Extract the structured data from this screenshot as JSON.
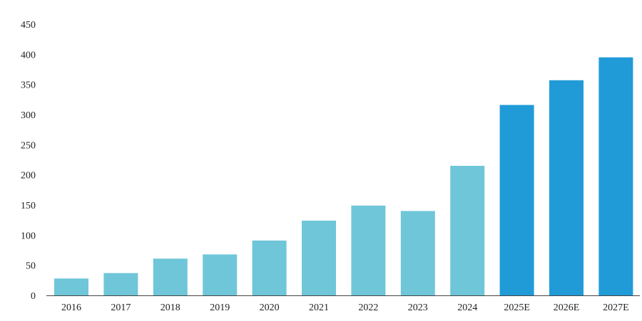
{
  "chart_data": {
    "type": "bar",
    "categories": [
      "2016",
      "2017",
      "2018",
      "2019",
      "2020",
      "2021",
      "2022",
      "2023",
      "2024",
      "2025E",
      "2026E",
      "2027E"
    ],
    "values": [
      28,
      37,
      61,
      68,
      91,
      124,
      149,
      140,
      215,
      316,
      357,
      395
    ],
    "ylim": [
      0,
      450
    ],
    "yticks": [
      0,
      50,
      100,
      150,
      200,
      250,
      300,
      350,
      400,
      450
    ],
    "title": "",
    "xlabel": "",
    "ylabel": "",
    "grid": false,
    "colors": {
      "actual": "#6FC6D9",
      "estimate": "#209BD8",
      "axis": "#444444"
    },
    "series_style": [
      "actual",
      "actual",
      "actual",
      "actual",
      "actual",
      "actual",
      "actual",
      "actual",
      "actual",
      "estimate",
      "estimate",
      "estimate"
    ]
  }
}
